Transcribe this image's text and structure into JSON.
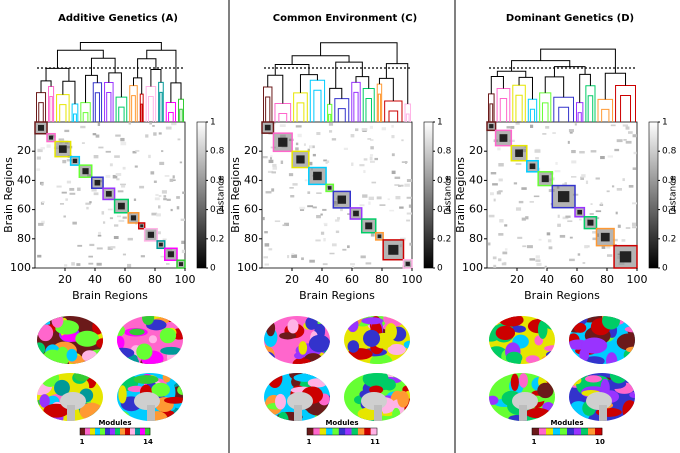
{
  "panels": [
    {
      "title": "Additive Genetics (A)",
      "y_label": "Brain Regions",
      "x_label": "Brain Regions",
      "lim": [
        0,
        100
      ],
      "ticks": [
        20,
        40,
        60,
        80,
        100
      ],
      "colorbar": {
        "label": "Distance",
        "lim": [
          0,
          1
        ],
        "ticks": [
          0,
          0.2,
          0.4,
          0.6,
          0.8,
          1
        ]
      },
      "modules": {
        "label": "Modules",
        "min": 1,
        "max": 14
      }
    },
    {
      "title": "Common Environment (C)",
      "y_label": "Brain Regions",
      "x_label": "Brain Regions",
      "lim": [
        0,
        100
      ],
      "ticks": [
        20,
        40,
        60,
        80,
        100
      ],
      "colorbar": {
        "label": "Distance",
        "lim": [
          0,
          1
        ],
        "ticks": [
          0,
          0.2,
          0.4,
          0.6,
          0.8,
          1
        ]
      },
      "modules": {
        "label": "Modules",
        "min": 1,
        "max": 11
      }
    },
    {
      "title": "Dominant Genetics (D)",
      "y_label": "Brain Regions",
      "x_label": "Brain Regions",
      "lim": [
        0,
        100
      ],
      "ticks": [
        20,
        40,
        60,
        80,
        100
      ],
      "colorbar": {
        "label": "Distance",
        "lim": [
          0,
          1
        ],
        "ticks": [
          0,
          0.2,
          0.4,
          0.6,
          0.8,
          1
        ]
      },
      "modules": {
        "label": "Modules",
        "min": 1,
        "max": 10
      }
    }
  ]
}
